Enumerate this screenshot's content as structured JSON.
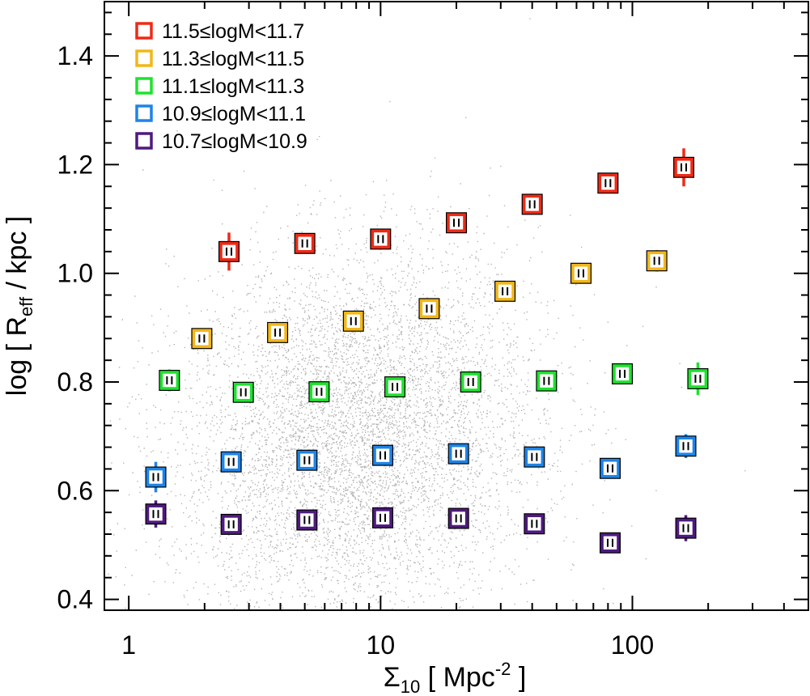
{
  "chart_data": {
    "type": "scatter",
    "x_scale": "log",
    "xlim": [
      0.8,
      500
    ],
    "ylim": [
      0.38,
      1.5
    ],
    "xlabel": {
      "symbol": "Σ",
      "sub": "10",
      "text": " [ Mpc",
      "sup": "-2",
      "end": " ]"
    },
    "ylabel": {
      "pre": "log [ R",
      "sub": "eff",
      "post": " / kpc ]"
    },
    "x_ticks": [
      {
        "value": 1,
        "label": "1"
      },
      {
        "value": 10,
        "label": "10"
      },
      {
        "value": 100,
        "label": "100"
      }
    ],
    "y_ticks": [
      {
        "value": 0.4,
        "label": "0.4"
      },
      {
        "value": 0.6,
        "label": "0.6"
      },
      {
        "value": 0.8,
        "label": "0.8"
      },
      {
        "value": 1.0,
        "label": "1.0"
      },
      {
        "value": 1.2,
        "label": "1.2"
      },
      {
        "value": 1.4,
        "label": "1.4"
      }
    ],
    "background_cloud": {
      "color": "#b4b4b4",
      "description_center_x": 8,
      "description_center_y": 0.7
    },
    "legend_position": "top-left",
    "series": [
      {
        "name": "11.5≤logM<11.7",
        "color": "#ee2a16",
        "points": [
          {
            "x": 2.5,
            "y": 1.04,
            "err": 0.035
          },
          {
            "x": 5.0,
            "y": 1.055,
            "err": 0.015
          },
          {
            "x": 10.0,
            "y": 1.063,
            "err": 0.012
          },
          {
            "x": 20.0,
            "y": 1.093,
            "err": 0.012
          },
          {
            "x": 40.0,
            "y": 1.127,
            "err": 0.012
          },
          {
            "x": 80.0,
            "y": 1.166,
            "err": 0.014
          },
          {
            "x": 160.0,
            "y": 1.195,
            "err": 0.035
          }
        ]
      },
      {
        "name": "11.3≤logM<11.5",
        "color": "#f2b718",
        "points": [
          {
            "x": 1.95,
            "y": 0.88,
            "err": 0.015
          },
          {
            "x": 3.9,
            "y": 0.891,
            "err": 0.012
          },
          {
            "x": 7.8,
            "y": 0.912,
            "err": 0.012
          },
          {
            "x": 15.6,
            "y": 0.935,
            "err": 0.012
          },
          {
            "x": 31.2,
            "y": 0.967,
            "err": 0.012
          },
          {
            "x": 62.5,
            "y": 1.0,
            "err": 0.014
          },
          {
            "x": 125.0,
            "y": 1.023,
            "err": 0.02
          }
        ]
      },
      {
        "name": "11.1≤logM<11.3",
        "color": "#1ee22e",
        "points": [
          {
            "x": 1.45,
            "y": 0.803,
            "err": 0.02
          },
          {
            "x": 2.85,
            "y": 0.781,
            "err": 0.012
          },
          {
            "x": 5.7,
            "y": 0.782,
            "err": 0.012
          },
          {
            "x": 11.4,
            "y": 0.791,
            "err": 0.012
          },
          {
            "x": 22.8,
            "y": 0.8,
            "err": 0.012
          },
          {
            "x": 45.6,
            "y": 0.802,
            "err": 0.012
          },
          {
            "x": 91.2,
            "y": 0.815,
            "err": 0.014
          },
          {
            "x": 182.0,
            "y": 0.806,
            "err": 0.03
          }
        ]
      },
      {
        "name": "10.9≤logM<11.1",
        "color": "#1d84e8",
        "points": [
          {
            "x": 1.28,
            "y": 0.625,
            "err": 0.028
          },
          {
            "x": 2.55,
            "y": 0.653,
            "err": 0.012
          },
          {
            "x": 5.1,
            "y": 0.656,
            "err": 0.012
          },
          {
            "x": 10.2,
            "y": 0.665,
            "err": 0.012
          },
          {
            "x": 20.4,
            "y": 0.668,
            "err": 0.012
          },
          {
            "x": 40.8,
            "y": 0.662,
            "err": 0.012
          },
          {
            "x": 81.6,
            "y": 0.641,
            "err": 0.015
          },
          {
            "x": 163.0,
            "y": 0.682,
            "err": 0.022
          }
        ]
      },
      {
        "name": "10.7≤logM<10.9",
        "color": "#4f1a7e",
        "points": [
          {
            "x": 1.28,
            "y": 0.557,
            "err": 0.025
          },
          {
            "x": 2.55,
            "y": 0.538,
            "err": 0.012
          },
          {
            "x": 5.1,
            "y": 0.546,
            "err": 0.012
          },
          {
            "x": 10.2,
            "y": 0.55,
            "err": 0.012
          },
          {
            "x": 20.4,
            "y": 0.549,
            "err": 0.012
          },
          {
            "x": 40.8,
            "y": 0.539,
            "err": 0.012
          },
          {
            "x": 81.6,
            "y": 0.504,
            "err": 0.014
          },
          {
            "x": 163.0,
            "y": 0.531,
            "err": 0.024
          }
        ]
      }
    ]
  }
}
